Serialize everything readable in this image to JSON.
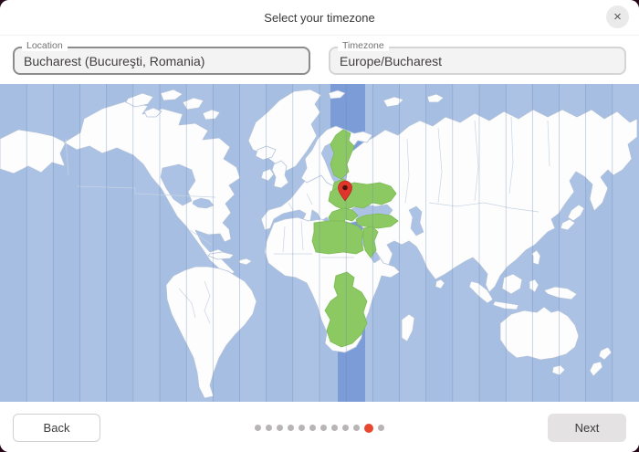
{
  "titlebar": {
    "title": "Select your timezone",
    "close_label": "×"
  },
  "fields": {
    "location": {
      "label": "Location",
      "value": "Bucharest (Bucureşti, Romania)"
    },
    "timezone": {
      "label": "Timezone",
      "value": "Europe/Bucharest"
    }
  },
  "map": {
    "selected_timezone": "Europe/Bucharest",
    "pin_location": "Bucharest"
  },
  "footer": {
    "back_label": "Back",
    "next_label": "Next",
    "total_pages": 12,
    "active_page_index": 10
  },
  "colors": {
    "backdrop": "#260818",
    "ocean": "#abc2e4",
    "selected_band": "#7b9cd6",
    "land": "#fdfdfe",
    "land_border": "#b2c2d9",
    "highlight_country": "#8cc963",
    "highlight_border": "#7cba52",
    "pin": "#e0352b",
    "pin_center": "#4f120e",
    "accent_orange": "#e6492f"
  }
}
